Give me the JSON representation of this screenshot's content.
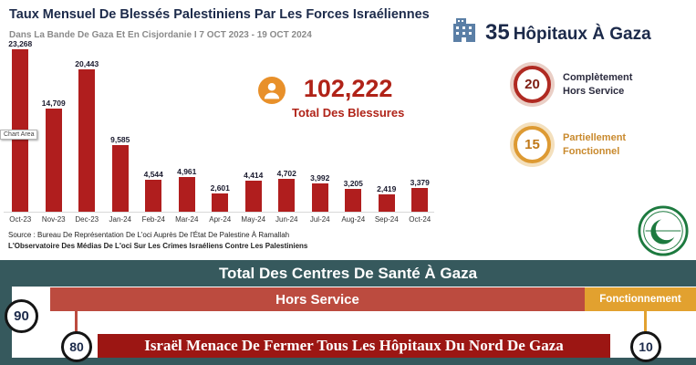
{
  "header": {
    "title": "Taux Mensuel De Blessés Palestiniens Par Les Forces Israéliennes",
    "subtitle": "Dans La Bande De Gaza Et En Cisjordanie  I 7 OCT 2023 - 19 OCT 2024"
  },
  "chart_data": {
    "type": "bar",
    "title": "Taux Mensuel De Blessés Palestiniens Par Les Forces Israéliennes",
    "categories": [
      "Oct-23",
      "Nov-23",
      "Dec-23",
      "Jan-24",
      "Feb-24",
      "Mar-24",
      "Apr-24",
      "May-24",
      "Jun-24",
      "Jul-24",
      "Aug-24",
      "Sep-24",
      "Oct-24"
    ],
    "values": [
      23268,
      14709,
      20443,
      9585,
      4544,
      4961,
      2601,
      4414,
      4702,
      3992,
      3205,
      2419,
      3379
    ],
    "labels": [
      "23,268",
      "14,709",
      "20,443",
      "9,585",
      "4,544",
      "4,961",
      "2,601",
      "4,414",
      "4,702",
      "3,992",
      "3,205",
      "2,419",
      "3,379"
    ],
    "bar_color": "#b01e1e",
    "xlabel": "",
    "ylabel": "",
    "ylim": [
      0,
      25000
    ],
    "grid": false,
    "legend": "none"
  },
  "chart_area_tooltip": "Chart Area",
  "total": {
    "value": "102,222",
    "label": "Total Des Blessures"
  },
  "source": {
    "line1": "Source : Bureau De Représentation De L'oci Auprès De l'État De Palestine À Ramallah",
    "line2": "L'Observatoire Des Médias De L'oci Sur Les Crimes Israéliens Contre Les Palestiniens"
  },
  "hospitals": {
    "count": "35",
    "label": "Hôpitaux À Gaza",
    "stats": [
      {
        "value": "20",
        "label": "Complètement Hors Service",
        "color": "#b02a22"
      },
      {
        "value": "15",
        "label": "Partiellement Fonctionnel",
        "color": "#dd9a33"
      }
    ]
  },
  "bottom": {
    "total_label": "Total Des Centres De Santé À Gaza",
    "total_value": "90",
    "hors_service_label": "Hors Service",
    "hors_service_value": "80",
    "fonctionnement_label": "Fonctionnement",
    "fonctionnement_value": "10",
    "banner": "Israël Menace De Fermer Tous Les Hôpitaux Du Nord De Gaza"
  },
  "icons": {
    "total_icon": "person-icon",
    "hospital_icon": "hospital-building-icon",
    "logo": "oic-logo"
  },
  "colors": {
    "bar": "#b01e1e",
    "dark_red": "#b02318",
    "navy": "#1c2a4a",
    "teal": "#36595d",
    "hors_red": "#bc4b3f",
    "orange": "#e2a12f",
    "banner_red": "#9c1613"
  }
}
